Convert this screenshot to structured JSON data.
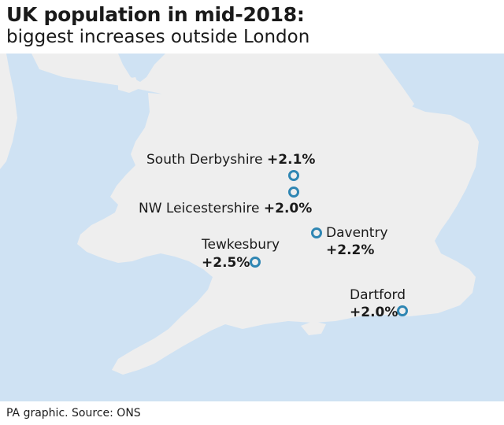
{
  "header": {
    "title": "UK population in mid-2018:",
    "subtitle": "biggest increases outside London"
  },
  "places": [
    {
      "name": "South Derbyshire",
      "change": "+2.1%"
    },
    {
      "name": "NW Leicestershire",
      "change": "+2.0%"
    },
    {
      "name": "Daventry",
      "change": "+2.2%"
    },
    {
      "name": "Tewkesbury",
      "change": "+2.5%"
    },
    {
      "name": "Dartford",
      "change": "+2.0%"
    }
  ],
  "footer": {
    "source": "PA graphic. Source: ONS"
  },
  "colors": {
    "sea": "#cfe2f3",
    "land": "#eeeeee",
    "marker": "#2f86b3"
  }
}
